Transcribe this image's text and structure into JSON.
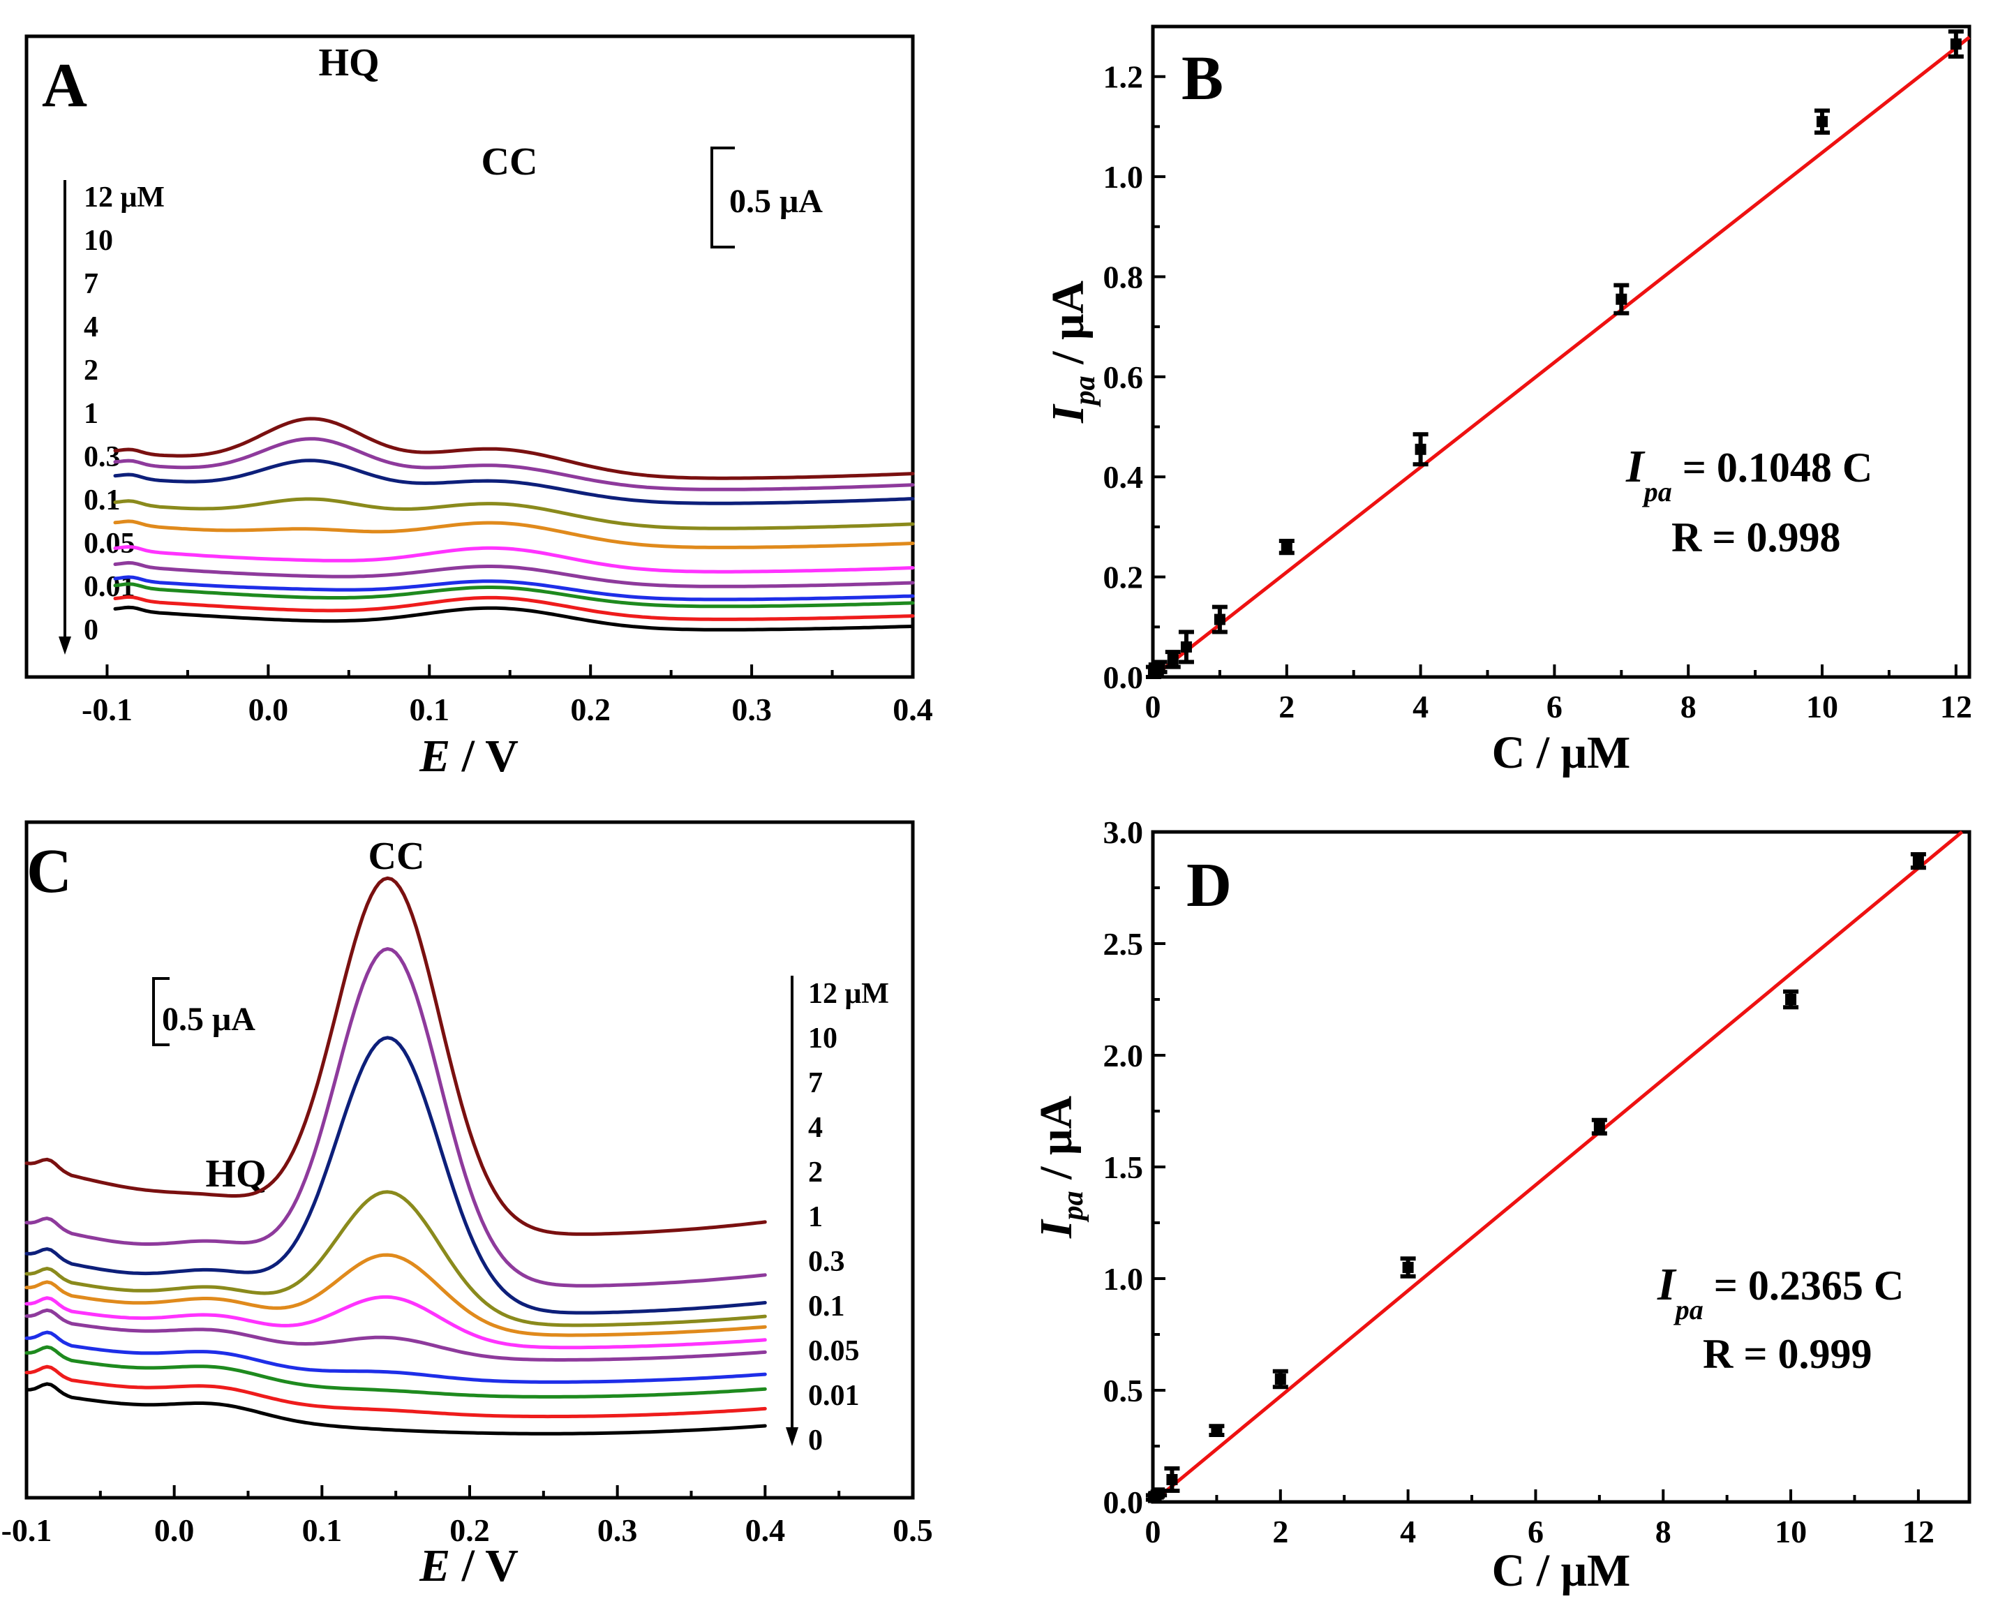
{
  "chart_data": [
    {
      "panel": "A",
      "type": "line",
      "xlabel_italic": "E",
      "xlabel_rest": " / V",
      "xlim": [
        -0.15,
        0.4
      ],
      "xticks": [
        -0.1,
        0.0,
        0.1,
        0.2,
        0.3,
        0.4
      ],
      "xtick_labels": [
        "-0.1",
        "0.0",
        "0.1",
        "0.2",
        "0.3",
        "0.4"
      ],
      "peak_labels": [
        "HQ",
        "CC"
      ],
      "scale_bar": "0.5 μA",
      "concentration_labels": [
        "12 μM",
        "10",
        "7",
        "4",
        "2",
        "1",
        "0.3",
        "0.1",
        "0.05",
        "0.01",
        "0"
      ],
      "series": [
        {
          "name": "12 μM",
          "color": "#7a1010",
          "offset": 3.78,
          "hq": 1.1,
          "cc": 0.62,
          "bg": 1.0
        },
        {
          "name": "10",
          "color": "#8e3a9c",
          "offset": 3.52,
          "hq": 0.9,
          "cc": 0.5,
          "bg": 1.0
        },
        {
          "name": "7",
          "color": "#0d1f7a",
          "offset": 3.2,
          "hq": 0.72,
          "cc": 0.46,
          "bg": 1.0
        },
        {
          "name": "4",
          "color": "#8a8a1c",
          "offset": 2.62,
          "hq": 0.42,
          "cc": 0.52,
          "bg": 0.95
        },
        {
          "name": "2",
          "color": "#e08a1c",
          "offset": 2.18,
          "hq": 0.18,
          "cc": 0.52,
          "bg": 0.9
        },
        {
          "name": "1",
          "color": "#ff33ff",
          "offset": 1.62,
          "hq": 0.03,
          "cc": 0.5,
          "bg": 0.85
        },
        {
          "name": "0.3",
          "color": "#8e3a9c",
          "offset": 1.28,
          "hq": 0.02,
          "cc": 0.42,
          "bg": 0.8
        },
        {
          "name": "0.1",
          "color": "#1e2ee8",
          "offset": 0.98,
          "hq": 0.03,
          "cc": 0.38,
          "bg": 0.75
        },
        {
          "name": "0.05",
          "color": "#1e8a1e",
          "offset": 0.82,
          "hq": 0.0,
          "cc": 0.4,
          "bg": 0.75
        },
        {
          "name": "0.01",
          "color": "#ee1c1c",
          "offset": 0.52,
          "hq": 0.0,
          "cc": 0.46,
          "bg": 0.75
        },
        {
          "name": "0",
          "color": "#000000",
          "offset": 0.28,
          "hq": 0.0,
          "cc": 0.46,
          "bg": 0.75
        }
      ]
    },
    {
      "panel": "B",
      "type": "scatter",
      "xlabel": "C / μM",
      "ylabel_italic": "I",
      "ylabel_sub": "pa",
      "ylabel_rest": " / μA",
      "xlim": [
        0,
        12.2
      ],
      "ylim": [
        0,
        1.3
      ],
      "xticks": [
        0,
        2,
        4,
        6,
        8,
        10,
        12
      ],
      "yticks": [
        0.0,
        0.2,
        0.4,
        0.6,
        0.8,
        1.0,
        1.2
      ],
      "ytick_labels": [
        "0.0",
        "0.2",
        "0.4",
        "0.6",
        "0.8",
        "1.0",
        "1.2"
      ],
      "x": [
        0.01,
        0.05,
        0.1,
        0.3,
        0.5,
        1,
        2,
        4,
        7,
        10,
        12
      ],
      "y": [
        0.01,
        0.015,
        0.02,
        0.035,
        0.06,
        0.115,
        0.26,
        0.455,
        0.755,
        1.11,
        1.265
      ],
      "err": [
        0.01,
        0.01,
        0.01,
        0.015,
        0.03,
        0.025,
        0.012,
        0.03,
        0.028,
        0.022,
        0.025
      ],
      "fit_slope": 0.1048,
      "fit_color": "#ee1111",
      "equation_italic": "I",
      "equation_sub": "pa",
      "equation_rest": " = 0.1048 C",
      "r_text": "R = 0.998"
    },
    {
      "panel": "C",
      "type": "line",
      "xlabel_italic": "E",
      "xlabel_rest": " / V",
      "xlim": [
        -0.1,
        0.5
      ],
      "xticks": [
        -0.1,
        0.0,
        0.1,
        0.2,
        0.3,
        0.4,
        0.5
      ],
      "xtick_labels": [
        "-0.1",
        "0.0",
        "0.1",
        "0.2",
        "0.3",
        "0.4",
        "0.5"
      ],
      "peak_labels": [
        "HQ",
        "CC"
      ],
      "scale_bar": "0.5 μA",
      "concentration_labels": [
        "12 μM",
        "10",
        "7",
        "4",
        "2",
        "1",
        "0.3",
        "0.1",
        "0.05",
        "0.01",
        "0"
      ],
      "series": [
        {
          "name": "12 μM",
          "color": "#7a1010",
          "offset": 1.62,
          "hq": 0.08,
          "cc": 2.85,
          "bg": 0.9
        },
        {
          "name": "10",
          "color": "#8e3a9c",
          "offset": 1.2,
          "hq": 0.15,
          "cc": 2.7,
          "bg": 0.8
        },
        {
          "name": "7",
          "color": "#0d1f7a",
          "offset": 0.98,
          "hq": 0.15,
          "cc": 2.2,
          "bg": 0.75
        },
        {
          "name": "4",
          "color": "#8a8a1c",
          "offset": 0.88,
          "hq": 0.14,
          "cc": 1.05,
          "bg": 0.65
        },
        {
          "name": "2",
          "color": "#e08a1c",
          "offset": 0.8,
          "hq": 0.14,
          "cc": 0.62,
          "bg": 0.6
        },
        {
          "name": "1",
          "color": "#ff33ff",
          "offset": 0.7,
          "hq": 0.12,
          "cc": 0.38,
          "bg": 0.55
        },
        {
          "name": "0.3",
          "color": "#8e3a9c",
          "offset": 0.6,
          "hq": 0.1,
          "cc": 0.15,
          "bg": 0.55
        },
        {
          "name": "0.1",
          "color": "#1e2ee8",
          "offset": 0.42,
          "hq": 0.1,
          "cc": 0.05,
          "bg": 0.55
        },
        {
          "name": "0.05",
          "color": "#1e8a1e",
          "offset": 0.3,
          "hq": 0.1,
          "cc": 0.02,
          "bg": 0.55
        },
        {
          "name": "0.01",
          "color": "#ee1c1c",
          "offset": 0.14,
          "hq": 0.1,
          "cc": 0.02,
          "bg": 0.55
        },
        {
          "name": "0",
          "color": "#000000",
          "offset": 0.0,
          "hq": 0.1,
          "cc": 0.0,
          "bg": 0.55
        }
      ]
    },
    {
      "panel": "D",
      "type": "scatter",
      "xlabel": "C / μM",
      "ylabel_italic": "I",
      "ylabel_sub": "pa",
      "ylabel_rest": " / μA",
      "xlim": [
        0,
        12.8
      ],
      "ylim": [
        0,
        3.0
      ],
      "xticks": [
        0,
        2,
        4,
        6,
        8,
        10,
        12
      ],
      "yticks": [
        0.0,
        0.5,
        1.0,
        1.5,
        2.0,
        2.5,
        3.0
      ],
      "ytick_labels": [
        "0.0",
        "0.5",
        "1.0",
        "1.5",
        "2.0",
        "2.5",
        "3.0"
      ],
      "x": [
        0.01,
        0.05,
        0.1,
        0.3,
        1,
        2,
        4,
        7,
        10,
        12
      ],
      "y": [
        0.02,
        0.03,
        0.04,
        0.1,
        0.32,
        0.55,
        1.05,
        1.68,
        2.25,
        2.87
      ],
      "err": [
        0.01,
        0.01,
        0.01,
        0.05,
        0.02,
        0.035,
        0.04,
        0.03,
        0.035,
        0.03
      ],
      "fit_slope": 0.2365,
      "fit_color": "#ee1111",
      "equation_italic": "I",
      "equation_sub": "pa",
      "equation_rest": " = 0.2365 C",
      "r_text": "R = 0.999"
    }
  ]
}
